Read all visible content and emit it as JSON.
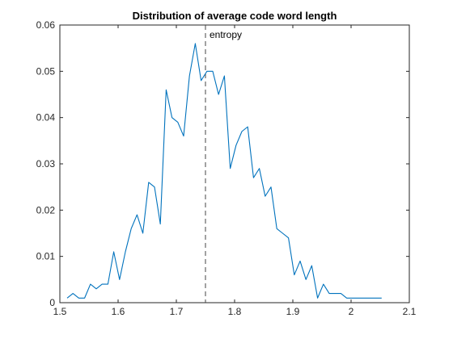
{
  "chart_data": {
    "type": "line",
    "title": "Distribution of average code word length",
    "xlabel": "",
    "ylabel": "",
    "xlim": [
      1.5,
      2.1
    ],
    "ylim": [
      0,
      0.06
    ],
    "grid": false,
    "x_ticks": [
      1.5,
      1.6,
      1.7,
      1.8,
      1.9,
      2.0,
      2.1
    ],
    "x_tick_labels": [
      "1.5",
      "1.6",
      "1.7",
      "1.8",
      "1.9",
      "2",
      "2.1"
    ],
    "y_ticks": [
      0,
      0.01,
      0.02,
      0.03,
      0.04,
      0.05,
      0.06
    ],
    "y_tick_labels": [
      "0",
      "0.01",
      "0.02",
      "0.03",
      "0.04",
      "0.05",
      "0.06"
    ],
    "series": [
      {
        "color": "#0072BD",
        "x": [
          1.5125,
          1.5225,
          1.5325,
          1.5425,
          1.5525,
          1.5625,
          1.5725,
          1.5825,
          1.5925,
          1.6025,
          1.6125,
          1.6225,
          1.6325,
          1.6425,
          1.6525,
          1.6625,
          1.6725,
          1.6825,
          1.6925,
          1.7025,
          1.7125,
          1.7225,
          1.7325,
          1.7425,
          1.7525,
          1.7625,
          1.7725,
          1.7825,
          1.7925,
          1.8025,
          1.8125,
          1.8225,
          1.8325,
          1.8425,
          1.8525,
          1.8625,
          1.8725,
          1.8825,
          1.8925,
          1.9025,
          1.9125,
          1.9225,
          1.9325,
          1.9425,
          1.9525,
          1.9625,
          1.9725,
          1.9825,
          1.9925,
          2.0025,
          2.0125,
          2.0225,
          2.0325,
          2.0425,
          2.0525
        ],
        "values": [
          0.001,
          0.002,
          0.001,
          0.001,
          0.004,
          0.003,
          0.004,
          0.004,
          0.011,
          0.005,
          0.011,
          0.016,
          0.019,
          0.015,
          0.026,
          0.025,
          0.017,
          0.046,
          0.04,
          0.039,
          0.036,
          0.049,
          0.056,
          0.048,
          0.05,
          0.05,
          0.045,
          0.049,
          0.029,
          0.034,
          0.037,
          0.038,
          0.027,
          0.029,
          0.023,
          0.025,
          0.016,
          0.015,
          0.014,
          0.006,
          0.009,
          0.005,
          0.008,
          0.001,
          0.004,
          0.002,
          0.002,
          0.002,
          0.001,
          0.001,
          0.001,
          0.001,
          0.001,
          0.001,
          0.001
        ]
      }
    ],
    "reference_line": {
      "x": 1.75,
      "style": "dashed",
      "color": "#444444",
      "label": "entropy"
    }
  }
}
